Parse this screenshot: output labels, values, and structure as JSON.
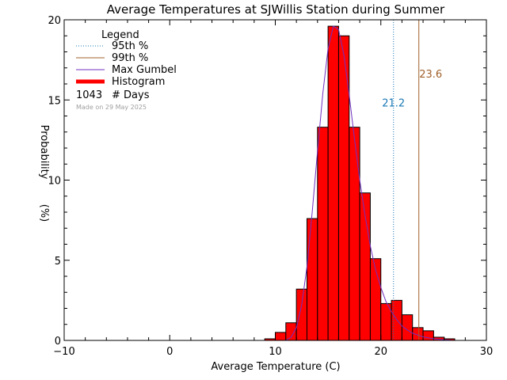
{
  "chart_data": {
    "type": "bar",
    "title": "Average Temperatures at SJWillis Station during Summer",
    "xlabel": "Average Temperature (C)",
    "ylabel_lines": [
      "Probability",
      "(%)"
    ],
    "xlim": [
      -10,
      30
    ],
    "ylim": [
      0,
      20
    ],
    "x_ticks": [
      -10,
      0,
      10,
      20,
      30
    ],
    "y_ticks": [
      0,
      5,
      10,
      15,
      20
    ],
    "bin_width": 1,
    "bins": [
      {
        "x0": 9,
        "value": 0.1
      },
      {
        "x0": 10,
        "value": 0.5
      },
      {
        "x0": 11,
        "value": 1.1
      },
      {
        "x0": 12,
        "value": 3.2
      },
      {
        "x0": 13,
        "value": 7.6
      },
      {
        "x0": 14,
        "value": 13.3
      },
      {
        "x0": 15,
        "value": 19.6
      },
      {
        "x0": 16,
        "value": 19.0
      },
      {
        "x0": 17,
        "value": 13.3
      },
      {
        "x0": 18,
        "value": 9.2
      },
      {
        "x0": 19,
        "value": 5.1
      },
      {
        "x0": 20,
        "value": 2.3
      },
      {
        "x0": 21,
        "value": 2.5
      },
      {
        "x0": 22,
        "value": 1.6
      },
      {
        "x0": 23,
        "value": 0.8
      },
      {
        "x0": 24,
        "value": 0.6
      },
      {
        "x0": 25,
        "value": 0.2
      },
      {
        "x0": 26,
        "value": 0.1
      }
    ],
    "gumbel_curve": [
      [
        11.0,
        0.0
      ],
      [
        11.5,
        0.2
      ],
      [
        12.0,
        0.8
      ],
      [
        12.5,
        2.2
      ],
      [
        13.0,
        4.6
      ],
      [
        13.5,
        8.0
      ],
      [
        14.0,
        11.8
      ],
      [
        14.5,
        15.4
      ],
      [
        15.0,
        18.2
      ],
      [
        15.5,
        19.6
      ],
      [
        16.0,
        19.4
      ],
      [
        16.5,
        17.8
      ],
      [
        17.0,
        15.3
      ],
      [
        17.5,
        12.6
      ],
      [
        18.0,
        10.0
      ],
      [
        18.5,
        7.8
      ],
      [
        19.0,
        5.9
      ],
      [
        19.5,
        4.4
      ],
      [
        20.0,
        3.3
      ],
      [
        20.5,
        2.4
      ],
      [
        21.0,
        1.8
      ],
      [
        21.5,
        1.3
      ],
      [
        22.0,
        0.9
      ],
      [
        22.5,
        0.65
      ],
      [
        23.0,
        0.45
      ],
      [
        24.0,
        0.22
      ],
      [
        25.0,
        0.1
      ],
      [
        26.0,
        0.04
      ],
      [
        27.0,
        0.0
      ]
    ],
    "p95": {
      "x": 21.2,
      "label": "21.2"
    },
    "p99": {
      "x": 23.6,
      "label": "23.6"
    },
    "legend": {
      "title": "Legend",
      "items": [
        {
          "label": "95th %",
          "kind": "dotted",
          "color": "#1a78b4"
        },
        {
          "label": "99th %",
          "kind": "solid",
          "color": "#a0602a"
        },
        {
          "label": "Max Gumbel",
          "kind": "solid",
          "color": "#7030c0"
        },
        {
          "label": "Histogram",
          "kind": "thick",
          "color": "#ff0000"
        }
      ],
      "days_count": "1043",
      "days_label": "# Days",
      "made_on": "Made on 29 May 2025"
    },
    "colors": {
      "histogram": "#ff0000",
      "outline": "#000000",
      "gumbel": "#7030c0",
      "p95": "#1a78b4",
      "p99": "#a0602a",
      "made_on": "#a0a0a0"
    }
  }
}
